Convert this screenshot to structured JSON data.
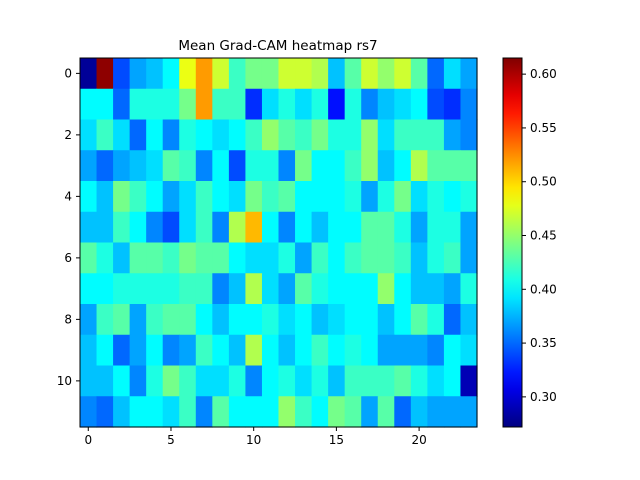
{
  "chart_data": {
    "type": "heatmap",
    "title": "Mean Grad-CAM heatmap rs7",
    "rows": 12,
    "cols": 24,
    "x_ticks": [
      0,
      5,
      10,
      15,
      20
    ],
    "y_ticks": [
      0,
      2,
      4,
      6,
      8,
      10
    ],
    "colorbar": {
      "colormap": "jet",
      "vmin": 0.272,
      "vmax": 0.615,
      "ticks": [
        0.3,
        0.35,
        0.4,
        0.45,
        0.5,
        0.55,
        0.6
      ],
      "tick_labels": [
        "0.30",
        "0.35",
        "0.40",
        "0.45",
        "0.50",
        "0.55",
        "0.60"
      ]
    },
    "values": [
      [
        0.28,
        0.61,
        0.34,
        0.37,
        0.38,
        0.4,
        0.48,
        0.52,
        0.47,
        0.42,
        0.44,
        0.44,
        0.47,
        0.47,
        0.46,
        0.38,
        0.43,
        0.47,
        0.45,
        0.47,
        0.43,
        0.35,
        0.39,
        0.37
      ],
      [
        0.4,
        0.4,
        0.35,
        0.41,
        0.41,
        0.41,
        0.44,
        0.52,
        0.42,
        0.42,
        0.33,
        0.39,
        0.41,
        0.39,
        0.41,
        0.32,
        0.41,
        0.36,
        0.38,
        0.39,
        0.4,
        0.34,
        0.33,
        0.36
      ],
      [
        0.39,
        0.42,
        0.39,
        0.35,
        0.4,
        0.36,
        0.41,
        0.4,
        0.39,
        0.4,
        0.42,
        0.45,
        0.43,
        0.42,
        0.44,
        0.41,
        0.41,
        0.45,
        0.39,
        0.42,
        0.42,
        0.42,
        0.37,
        0.36
      ],
      [
        0.37,
        0.35,
        0.37,
        0.38,
        0.39,
        0.43,
        0.42,
        0.36,
        0.4,
        0.34,
        0.41,
        0.41,
        0.36,
        0.44,
        0.4,
        0.4,
        0.42,
        0.45,
        0.38,
        0.4,
        0.46,
        0.43,
        0.43,
        0.43
      ],
      [
        0.4,
        0.38,
        0.44,
        0.42,
        0.4,
        0.37,
        0.39,
        0.42,
        0.4,
        0.39,
        0.44,
        0.42,
        0.43,
        0.4,
        0.4,
        0.4,
        0.41,
        0.37,
        0.41,
        0.44,
        0.39,
        0.41,
        0.4,
        0.41
      ],
      [
        0.38,
        0.38,
        0.42,
        0.4,
        0.36,
        0.34,
        0.39,
        0.42,
        0.36,
        0.46,
        0.51,
        0.4,
        0.36,
        0.4,
        0.38,
        0.4,
        0.4,
        0.43,
        0.43,
        0.41,
        0.37,
        0.41,
        0.41,
        0.37
      ],
      [
        0.43,
        0.41,
        0.38,
        0.43,
        0.43,
        0.42,
        0.44,
        0.43,
        0.43,
        0.4,
        0.39,
        0.39,
        0.41,
        0.37,
        0.42,
        0.4,
        0.42,
        0.43,
        0.43,
        0.42,
        0.38,
        0.41,
        0.42,
        0.37
      ],
      [
        0.4,
        0.4,
        0.41,
        0.41,
        0.41,
        0.41,
        0.42,
        0.42,
        0.36,
        0.38,
        0.46,
        0.39,
        0.37,
        0.43,
        0.41,
        0.4,
        0.4,
        0.4,
        0.45,
        0.4,
        0.38,
        0.38,
        0.37,
        0.41
      ],
      [
        0.37,
        0.42,
        0.43,
        0.37,
        0.42,
        0.43,
        0.43,
        0.4,
        0.38,
        0.4,
        0.4,
        0.41,
        0.39,
        0.4,
        0.38,
        0.39,
        0.4,
        0.4,
        0.38,
        0.4,
        0.43,
        0.41,
        0.35,
        0.38
      ],
      [
        0.38,
        0.4,
        0.35,
        0.37,
        0.4,
        0.36,
        0.37,
        0.42,
        0.4,
        0.38,
        0.46,
        0.4,
        0.38,
        0.4,
        0.42,
        0.4,
        0.41,
        0.4,
        0.37,
        0.37,
        0.37,
        0.36,
        0.4,
        0.39
      ],
      [
        0.38,
        0.38,
        0.4,
        0.36,
        0.41,
        0.44,
        0.42,
        0.39,
        0.39,
        0.41,
        0.36,
        0.4,
        0.41,
        0.39,
        0.41,
        0.38,
        0.42,
        0.42,
        0.42,
        0.43,
        0.41,
        0.39,
        0.4,
        0.29
      ],
      [
        0.36,
        0.35,
        0.38,
        0.4,
        0.4,
        0.39,
        0.42,
        0.36,
        0.43,
        0.4,
        0.4,
        0.4,
        0.45,
        0.42,
        0.4,
        0.44,
        0.43,
        0.37,
        0.43,
        0.35,
        0.38,
        0.37,
        0.37,
        0.37
      ]
    ]
  }
}
